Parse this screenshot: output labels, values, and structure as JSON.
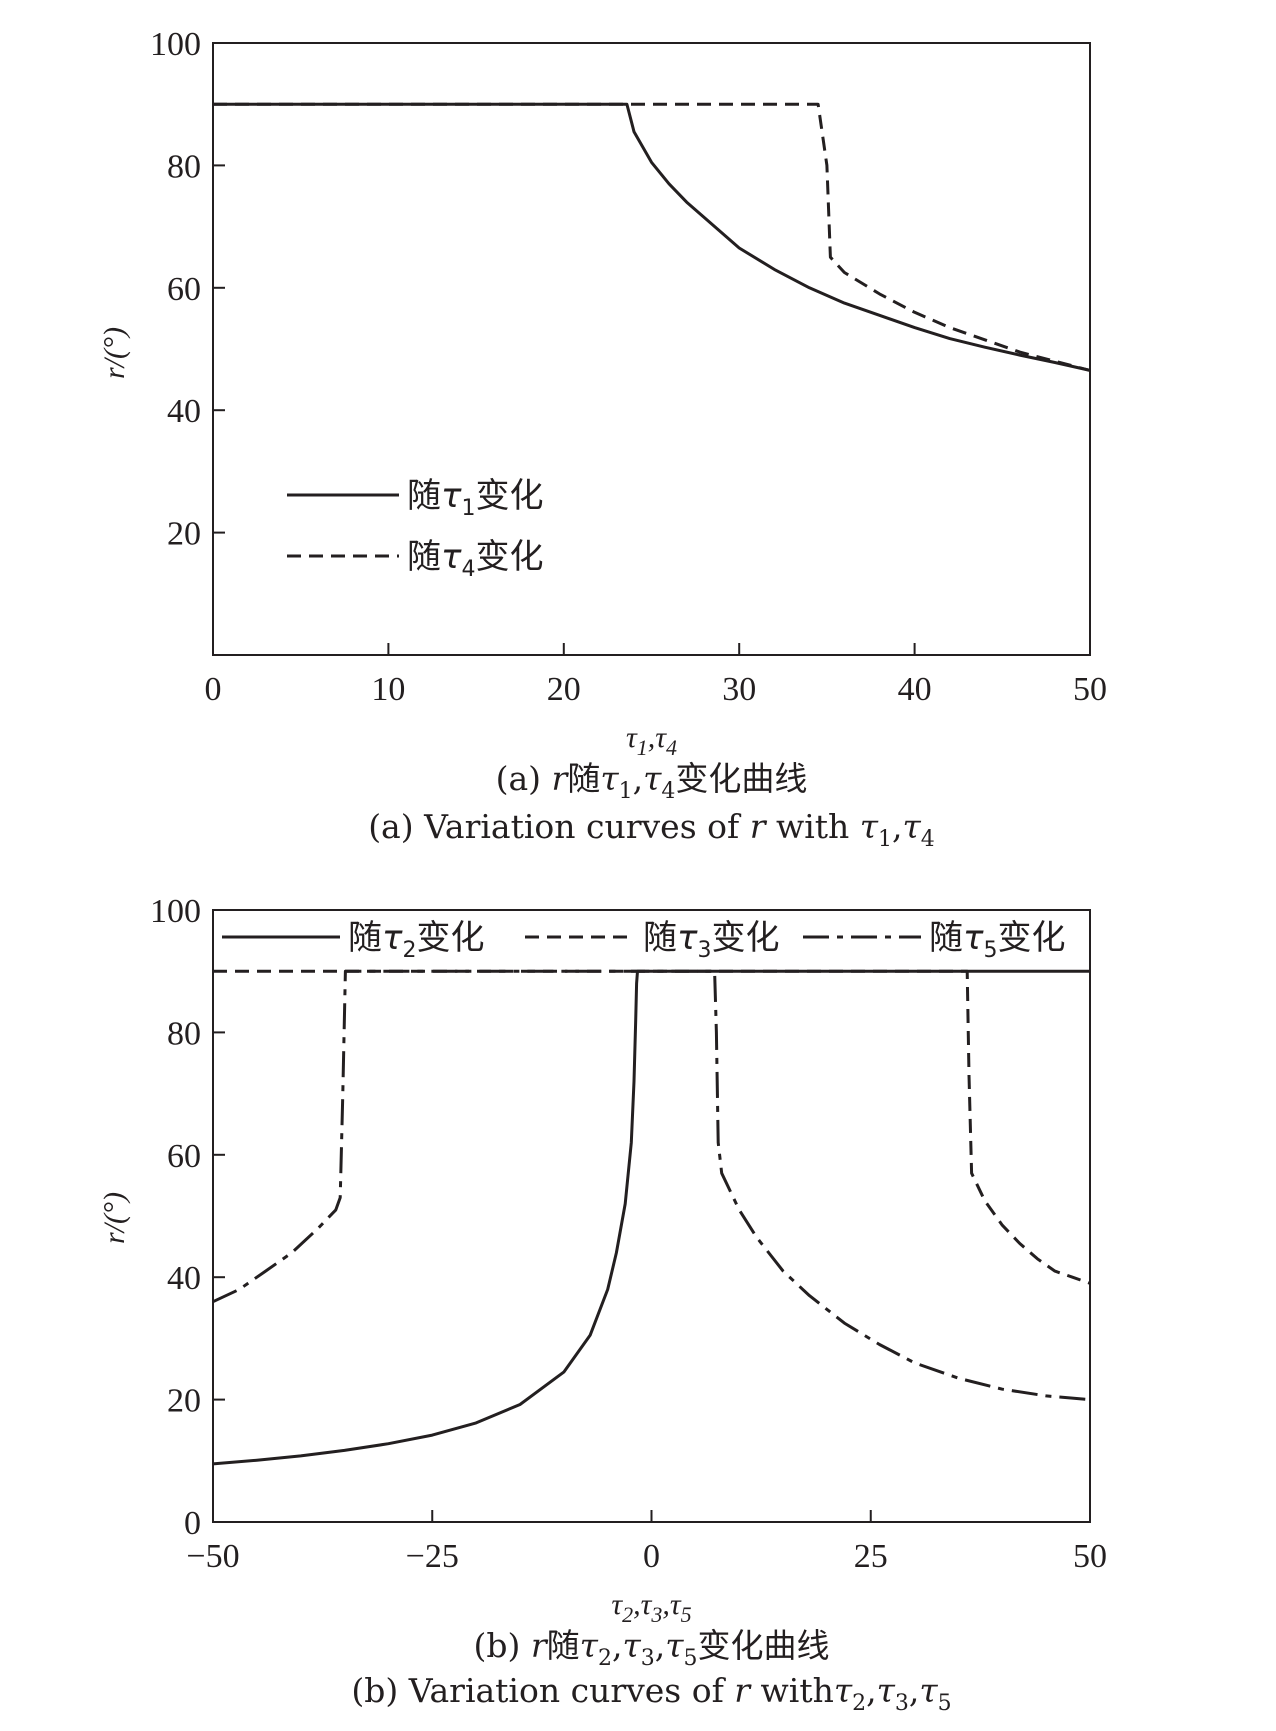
{
  "chart_data": [
    {
      "type": "line",
      "xlabel": "τ1,τ4",
      "ylabel": "r/(°)",
      "xlim": [
        0,
        50
      ],
      "ylim": [
        0,
        100
      ],
      "xticks": [
        "0",
        "10",
        "20",
        "30",
        "40",
        "50"
      ],
      "yticks": [
        "20",
        "40",
        "60",
        "80",
        "100"
      ],
      "caption_cn": "(a) r随τ1,τ4变化曲线",
      "caption_en": "(a) Variation curves of r with τ1,τ4",
      "legend_position": "lower-left",
      "series": [
        {
          "name": "随τ1变化",
          "style": "solid",
          "x": [
            0,
            23.6,
            24,
            25,
            26,
            27,
            28,
            30,
            32,
            34,
            36,
            38,
            40,
            42,
            44,
            46,
            48,
            50
          ],
          "y": [
            90,
            90,
            85.5,
            80.5,
            77,
            74,
            71.5,
            66.5,
            63,
            60,
            57.5,
            55.5,
            53.5,
            51.7,
            50.3,
            49,
            47.8,
            46.5
          ]
        },
        {
          "name": "随τ4变化",
          "style": "dashed",
          "x": [
            0,
            34.5,
            35,
            35.2,
            36,
            38,
            40,
            42,
            44,
            46,
            48,
            50
          ],
          "y": [
            90,
            90,
            80,
            65,
            62.5,
            59,
            56,
            53.5,
            51.5,
            49.5,
            48,
            46.5
          ]
        }
      ]
    },
    {
      "type": "line",
      "xlabel": "τ2,τ3,τ5",
      "ylabel": "r/(°)",
      "xlim": [
        -50,
        50
      ],
      "ylim": [
        0,
        100
      ],
      "xticks": [
        "−50",
        "−25",
        "0",
        "25",
        "50"
      ],
      "yticks": [
        "0",
        "20",
        "40",
        "60",
        "80",
        "100"
      ],
      "caption_cn": "(b) r随τ2,τ3,τ5变化曲线",
      "caption_en": "(b) Variation curves of r withτ2,τ3,τ5",
      "legend_position": "top",
      "series": [
        {
          "name": "随τ2变化",
          "style": "solid",
          "x": [
            -50,
            -45,
            -40,
            -35,
            -30,
            -25,
            -20,
            -15,
            -10,
            -7,
            -5,
            -4,
            -3,
            -2.3,
            -2,
            -1.8,
            -1.7,
            -1.6,
            50
          ],
          "y": [
            9.5,
            10.1,
            10.8,
            11.7,
            12.8,
            14.2,
            16.2,
            19.2,
            24.5,
            30.5,
            38,
            44,
            52,
            62,
            72,
            82,
            88,
            90,
            90
          ]
        },
        {
          "name": "随τ3变化",
          "style": "dashed",
          "x": [
            -50,
            36,
            36.2,
            36.5,
            38,
            40,
            42,
            44,
            46,
            48,
            50
          ],
          "y": [
            90,
            90,
            73,
            57,
            52.5,
            48.5,
            45.5,
            43,
            41,
            40,
            39
          ]
        },
        {
          "name": "随τ5变化",
          "style": "dashdot",
          "x": [
            -50,
            -47,
            -44,
            -41,
            -38,
            -36,
            -35.5,
            -35.2,
            -34.9,
            7.2,
            7.4,
            7.6,
            8,
            10,
            12,
            15,
            18,
            22,
            26,
            30,
            35,
            40,
            45,
            50
          ],
          "y": [
            36,
            38,
            41,
            44,
            48,
            51,
            53,
            70,
            90,
            90,
            80,
            62,
            57,
            51,
            46.5,
            41,
            37,
            32.5,
            29,
            26,
            23.5,
            21.7,
            20.6,
            20
          ]
        }
      ]
    }
  ]
}
